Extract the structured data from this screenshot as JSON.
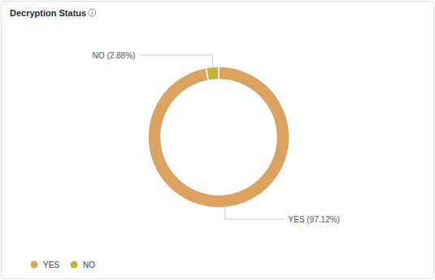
{
  "chart_data": {
    "type": "donut",
    "title": "Decryption Status",
    "categories": [
      "YES",
      "NO"
    ],
    "values": [
      97.12,
      2.88
    ],
    "colors": [
      "#dca25f",
      "#c6b13c"
    ],
    "data_labels": true,
    "value_labels": [
      "YES (97.12%)",
      "NO (2.88%)"
    ],
    "legend": "bottom-left"
  }
}
